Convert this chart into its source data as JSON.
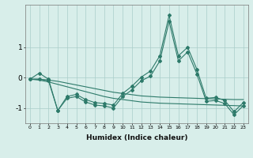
{
  "xlabel": "Humidex (Indice chaleur)",
  "x": [
    0,
    1,
    2,
    3,
    4,
    5,
    6,
    7,
    8,
    9,
    10,
    11,
    12,
    13,
    14,
    15,
    16,
    17,
    18,
    19,
    20,
    21,
    22,
    23
  ],
  "series_main": [
    -0.05,
    0.15,
    -0.05,
    -1.08,
    -0.62,
    -0.55,
    -0.72,
    -0.82,
    -0.85,
    -0.9,
    -0.52,
    -0.28,
    0.02,
    0.22,
    0.72,
    2.05,
    0.72,
    1.0,
    0.27,
    -0.68,
    -0.65,
    -0.75,
    -1.12,
    -0.82
  ],
  "series_low": [
    -0.05,
    -0.05,
    -0.1,
    -1.08,
    -0.68,
    -0.62,
    -0.8,
    -0.9,
    -0.93,
    -1.0,
    -0.62,
    -0.4,
    -0.1,
    0.05,
    0.55,
    1.85,
    0.55,
    0.85,
    0.12,
    -0.78,
    -0.75,
    -0.85,
    -1.22,
    -0.92
  ],
  "trend_upper": [
    -0.05,
    -0.05,
    -0.08,
    -0.12,
    -0.18,
    -0.24,
    -0.3,
    -0.36,
    -0.42,
    -0.48,
    -0.52,
    -0.56,
    -0.6,
    -0.62,
    -0.64,
    -0.65,
    -0.66,
    -0.67,
    -0.68,
    -0.69,
    -0.7,
    -0.71,
    -0.72,
    -0.72
  ],
  "trend_lower": [
    -0.05,
    -0.08,
    -0.14,
    -0.22,
    -0.3,
    -0.38,
    -0.46,
    -0.54,
    -0.62,
    -0.68,
    -0.72,
    -0.76,
    -0.8,
    -0.82,
    -0.84,
    -0.85,
    -0.86,
    -0.87,
    -0.88,
    -0.89,
    -0.9,
    -0.91,
    -0.92,
    -0.93
  ],
  "line_color": "#2d7a6a",
  "bg_color": "#d8eeea",
  "grid_color": "#aaceca",
  "ylim": [
    -1.5,
    2.4
  ],
  "yticks": [
    -1,
    0,
    1
  ],
  "marker_size": 2.0,
  "line_width": 0.8
}
